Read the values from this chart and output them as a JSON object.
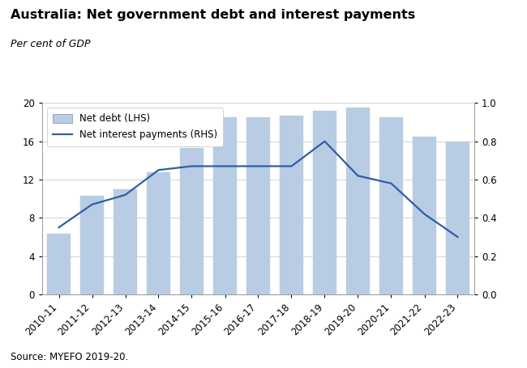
{
  "title": "Australia: Net government debt and interest payments",
  "subtitle": "Per cent of GDP",
  "source": "Source: MYEFO 2019-20.",
  "categories": [
    "2010-11",
    "2011-12",
    "2012-13",
    "2013-14",
    "2014-15",
    "2015-16",
    "2016-17",
    "2017-18",
    "2018-19",
    "2019-20",
    "2020-21",
    "2021-22",
    "2022-23"
  ],
  "net_debt": [
    6.3,
    10.3,
    11.0,
    12.8,
    15.3,
    18.5,
    18.5,
    18.7,
    19.2,
    19.5,
    18.5,
    16.5,
    16.0
  ],
  "net_interest": [
    0.35,
    0.47,
    0.52,
    0.65,
    0.67,
    0.67,
    0.67,
    0.67,
    0.8,
    0.62,
    0.58,
    0.42,
    0.3
  ],
  "bar_color": "#b8cce4",
  "bar_edgecolor": "#b8cce4",
  "line_color": "#2e5fa3",
  "ylim_left": [
    0,
    20
  ],
  "ylim_right": [
    0.0,
    1.0
  ],
  "yticks_left": [
    0,
    4,
    8,
    12,
    16,
    20
  ],
  "yticks_right": [
    0.0,
    0.2,
    0.4,
    0.6,
    0.8,
    1.0
  ],
  "legend_net_debt": "Net debt (LHS)",
  "legend_net_interest": "Net interest payments (RHS)",
  "title_fontsize": 11.5,
  "subtitle_fontsize": 9,
  "source_fontsize": 8.5,
  "tick_fontsize": 8.5
}
